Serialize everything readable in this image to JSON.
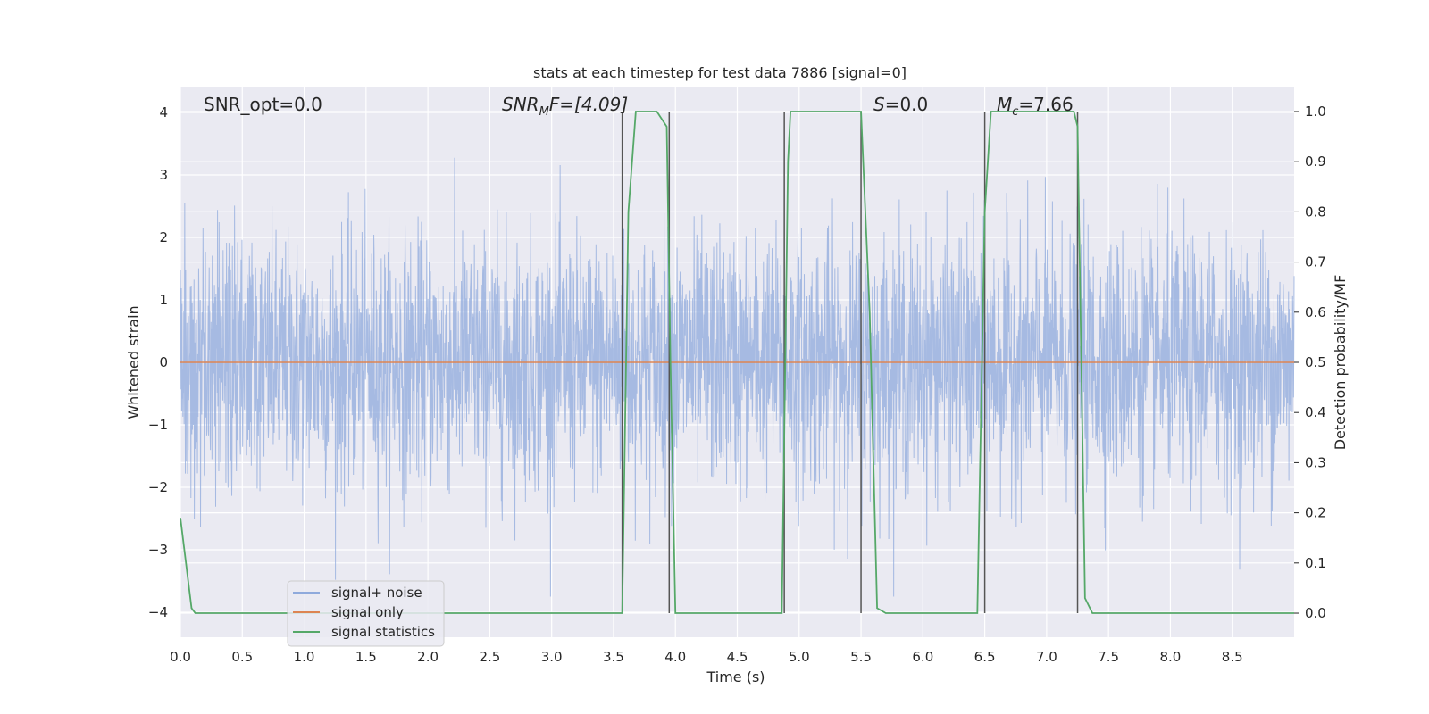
{
  "chart_data": {
    "type": "line",
    "title": "stats at each timestep for test data 7886 [signal=0]",
    "xlabel": "Time (s)",
    "ylabel": "Whitened strain",
    "ylabel_right": "Detection probability/MF",
    "xlim": [
      0.0,
      9.0
    ],
    "ylim": [
      -4.4,
      4.4
    ],
    "ylim_right": [
      -0.048,
      1.048
    ],
    "x_ticks": [
      "0.0",
      "0.5",
      "1.0",
      "1.5",
      "2.0",
      "2.5",
      "3.0",
      "3.5",
      "4.0",
      "4.5",
      "5.0",
      "5.5",
      "6.0",
      "6.5",
      "7.0",
      "7.5",
      "8.0",
      "8.5"
    ],
    "y_ticks": [
      "4",
      "3",
      "2",
      "1",
      "0",
      "−1",
      "−2",
      "−3",
      "−4"
    ],
    "y_ticks_right": [
      "1.0",
      "0.9",
      "0.8",
      "0.7",
      "0.6",
      "0.5",
      "0.4",
      "0.3",
      "0.2",
      "0.1",
      "0.0"
    ],
    "grid": true,
    "legend_position": "lower-left",
    "annotations": {
      "snr_opt": "SNR_opt=0.0",
      "snr_mf_main": "SNR",
      "snr_mf_sub": "M",
      "snr_mf_rest": "F=[4.09]",
      "s_main": "S",
      "s_rest": "=0.0",
      "mc_main": "M",
      "mc_sub": "c",
      "mc_rest": "=7.66"
    },
    "series": [
      {
        "name": "signal+ noise",
        "color": "#8faadc",
        "description_values": {
          "mean": 0.0,
          "std": 1.0,
          "min": -3.75,
          "max": 4.0
        }
      },
      {
        "name": "signal only",
        "color": "#dd8452",
        "x": [
          0.0,
          9.0
        ],
        "y": [
          0.0,
          0.0
        ]
      },
      {
        "name": "signal statistics",
        "color": "#55a868",
        "x": [
          0.0,
          0.09,
          0.12,
          0.2,
          3.0,
          3.57,
          3.62,
          3.68,
          3.85,
          3.93,
          3.96,
          4.0,
          4.05,
          4.8,
          4.86,
          4.91,
          4.93,
          5.5,
          5.57,
          5.63,
          5.7,
          5.8,
          6.0,
          6.44,
          6.5,
          6.55,
          6.6,
          7.22,
          7.25,
          7.31,
          7.37,
          7.45,
          9.0
        ],
        "y": [
          0.19,
          0.01,
          0.0,
          0.0,
          0.0,
          0.0,
          0.8,
          1.0,
          1.0,
          0.97,
          0.5,
          0.0,
          0.0,
          0.0,
          0.0,
          0.9,
          1.0,
          1.0,
          0.6,
          0.01,
          0.0,
          0.0,
          0.0,
          0.0,
          0.8,
          1.0,
          1.0,
          1.0,
          0.97,
          0.03,
          0.0,
          0.0,
          0.0
        ]
      }
    ],
    "vertical_markers_x": [
      3.57,
      3.95,
      4.88,
      5.5,
      6.5,
      7.25
    ]
  }
}
